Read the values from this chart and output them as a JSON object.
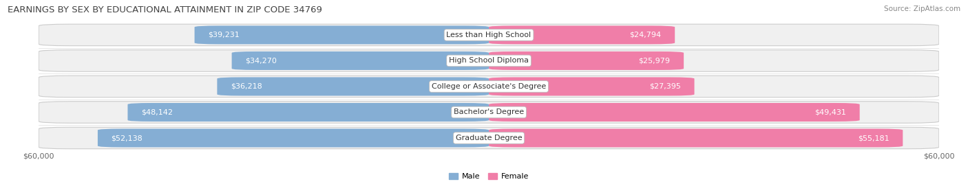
{
  "title": "EARNINGS BY SEX BY EDUCATIONAL ATTAINMENT IN ZIP CODE 34769",
  "source": "Source: ZipAtlas.com",
  "categories": [
    "Less than High School",
    "High School Diploma",
    "College or Associate's Degree",
    "Bachelor's Degree",
    "Graduate Degree"
  ],
  "male_values": [
    39231,
    34270,
    36218,
    48142,
    52138
  ],
  "female_values": [
    24794,
    25979,
    27395,
    49431,
    55181
  ],
  "male_color": "#85aed4",
  "female_color": "#f07ea8",
  "male_label": "Male",
  "female_label": "Female",
  "max_value": 60000,
  "axis_label_left": "$60,000",
  "axis_label_right": "$60,000",
  "bar_height": 0.72,
  "row_bg_color": "#e8e8e8",
  "row_fill_color": "#f8f8f8",
  "label_color_inside_male": "#ffffff",
  "label_color_inside_female": "#ffffff",
  "label_color_outside": "#555555",
  "title_fontsize": 9.5,
  "source_fontsize": 7.5,
  "bar_label_fontsize": 8,
  "category_fontsize": 8,
  "axis_fontsize": 8,
  "threshold_inside_male": 0.22,
  "threshold_inside_female": 0.22
}
